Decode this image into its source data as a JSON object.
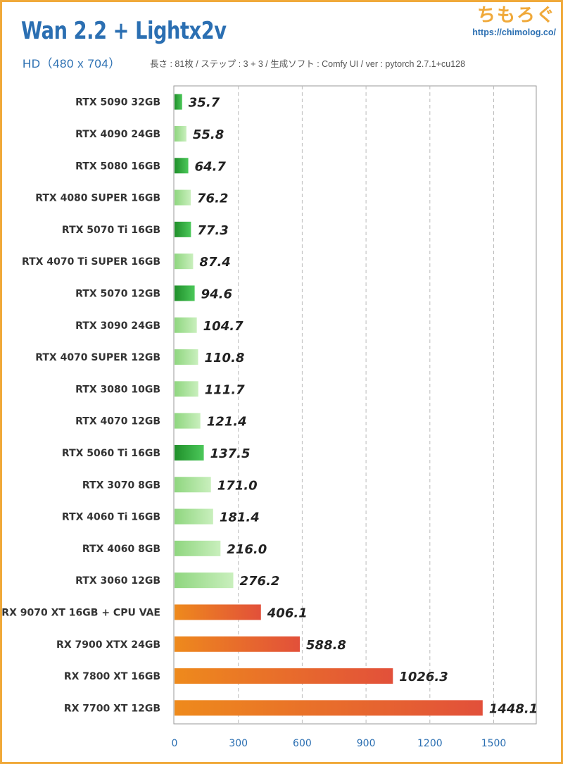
{
  "header": {
    "title": "Wan 2.2 + Lightx2v",
    "subtitle": "HD（480 x 704）",
    "meta": "長さ : 81枚 / ステップ : 3 + 3 / 生成ソフト : Comfy UI / ver : pytorch 2.7.1+cu128",
    "brand_name": "ちもろぐ",
    "brand_url": "https://chimolog.co/"
  },
  "colors": {
    "nvidia_new_start": "#1f8f2a",
    "nvidia_new_end": "#4cc85a",
    "nvidia_old_start": "#8fd67f",
    "nvidia_old_end": "#c9efbd",
    "amd_start": "#ee8a1c",
    "amd_end": "#e2503a",
    "grid": "#bbbbbb",
    "axis_text": "#2b6fb2",
    "title": "#2b6fb2",
    "accent": "#f0a93a"
  },
  "chart_data": {
    "type": "bar",
    "orientation": "horizontal",
    "title": "Wan 2.2 + Lightx2v",
    "subtitle": "HD（480 x 704）",
    "xlabel": "",
    "ylabel": "",
    "xlim": [
      0,
      1700
    ],
    "xticks": [
      0,
      300,
      600,
      900,
      1200,
      1500
    ],
    "grid": true,
    "legend": "none",
    "categories": [
      "RTX 5090 32GB",
      "RTX 4090 24GB",
      "RTX 5080 16GB",
      "RTX 4080 SUPER 16GB",
      "RTX 5070 Ti 16GB",
      "RTX 4070 Ti SUPER 16GB",
      "RTX 5070 12GB",
      "RTX 3090 24GB",
      "RTX 4070 SUPER 12GB",
      "RTX 3080 10GB",
      "RTX 4070 12GB",
      "RTX 5060 Ti 16GB",
      "RTX 3070 8GB",
      "RTX 4060 Ti 16GB",
      "RTX 4060 8GB",
      "RTX 3060 12GB",
      "RX 9070 XT 16GB + CPU VAE",
      "RX 7900 XTX 24GB",
      "RX 7800 XT 16GB",
      "RX 7700 XT 12GB"
    ],
    "values": [
      35.7,
      55.8,
      64.7,
      76.2,
      77.3,
      87.4,
      94.6,
      104.7,
      110.8,
      111.7,
      121.4,
      137.5,
      171.0,
      181.4,
      216.0,
      276.2,
      406.1,
      588.8,
      1026.3,
      1448.1
    ],
    "value_labels": [
      "35.7",
      "55.8",
      "64.7",
      "76.2",
      "77.3",
      "87.4",
      "94.6",
      "104.7",
      "110.8",
      "111.7",
      "121.4",
      "137.5",
      "171.0",
      "181.4",
      "216.0",
      "276.2",
      "406.1",
      "588.8",
      "1026.3",
      "1448.1"
    ],
    "bar_groups": [
      "nvidia_new",
      "nvidia_old",
      "nvidia_new",
      "nvidia_old",
      "nvidia_new",
      "nvidia_old",
      "nvidia_new",
      "nvidia_old",
      "nvidia_old",
      "nvidia_old",
      "nvidia_old",
      "nvidia_new",
      "nvidia_old",
      "nvidia_old",
      "nvidia_old",
      "nvidia_old",
      "amd",
      "amd",
      "amd",
      "amd"
    ]
  }
}
